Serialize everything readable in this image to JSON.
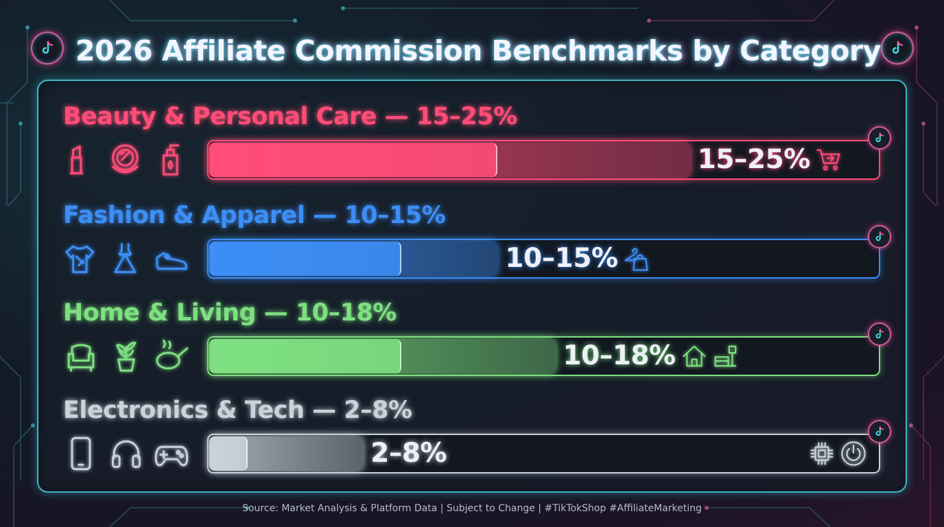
{
  "title": "2026 Affiliate Commission Benchmarks by Category",
  "source": "Source: Market Analysis & Platform Data | Subject to Change | #TikTokShop #AffiliateMarketing",
  "colors": {
    "beauty": "#ff4d78",
    "fashion": "#3d8ef5",
    "home": "#7ee081",
    "electronics": "#c9d3dc",
    "accent_cyan": "#3fb6c4",
    "accent_pink": "#e0559a"
  },
  "chart_data": {
    "type": "bar",
    "orientation": "horizontal",
    "title": "2026 Affiliate Commission Benchmarks by Category",
    "xlim": [
      0,
      35
    ],
    "categories": [
      {
        "label": "Beauty & Personal Care — 15–25%",
        "low": 15,
        "high": 25,
        "value_label": "15–25%",
        "icons": [
          "lipstick-icon",
          "compact-mirror-icon",
          "pump-bottle-icon"
        ],
        "end_icons": [
          "shopping-cart-icon"
        ]
      },
      {
        "label": "Fashion & Apparel — 10–15%",
        "low": 10,
        "high": 15,
        "value_label": "10–15%",
        "icons": [
          "tshirt-icon",
          "dress-icon",
          "sneaker-icon"
        ],
        "end_icons": [
          "hanger-bag-icon"
        ]
      },
      {
        "label": "Home & Living — 10–18%",
        "low": 10,
        "high": 18,
        "value_label": "10–18%",
        "icons": [
          "armchair-icon",
          "potted-plant-icon",
          "frying-pan-icon"
        ],
        "end_icons": [
          "house-icon",
          "furniture-icon"
        ]
      },
      {
        "label": "Electronics & Tech — 2–8%",
        "low": 2,
        "high": 8,
        "value_label": "2–8%",
        "icons": [
          "smartphone-icon",
          "headphones-icon",
          "game-controller-icon"
        ],
        "end_icons": [
          "chip-icon",
          "power-icon"
        ]
      }
    ]
  }
}
